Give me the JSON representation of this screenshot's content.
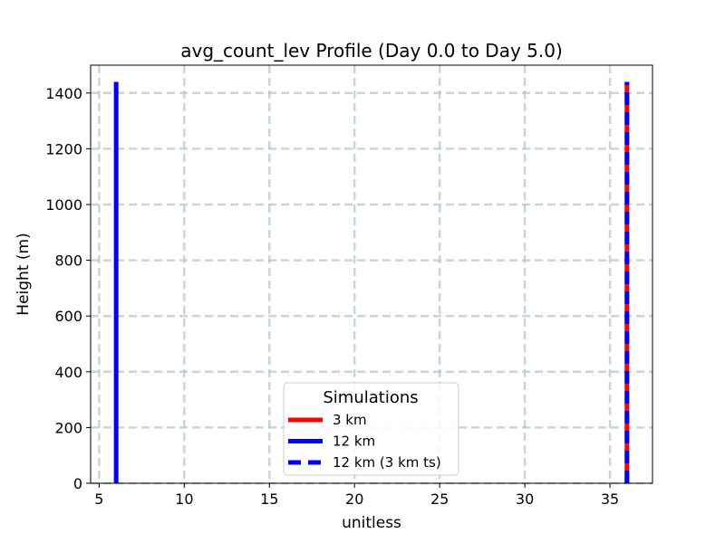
{
  "chart_data": {
    "type": "line",
    "title": "avg_count_lev Profile (Day 0.0 to Day 5.0)",
    "xlabel": "unitless",
    "ylabel": "Height (m)",
    "xlim": [
      4.5,
      37.5
    ],
    "ylim": [
      0,
      1500
    ],
    "xticks": [
      5,
      10,
      15,
      20,
      25,
      30,
      35
    ],
    "yticks": [
      0,
      200,
      400,
      600,
      800,
      1000,
      1200,
      1400
    ],
    "grid": true,
    "legend": {
      "title": "Simulations",
      "placement": "lower-center"
    },
    "series": [
      {
        "name": "3 km",
        "color": "#ff0000",
        "style": "solid",
        "x": [
          36,
          36
        ],
        "y": [
          0,
          1440
        ]
      },
      {
        "name": "12 km",
        "color": "#0000ff",
        "style": "solid",
        "x": [
          6,
          6
        ],
        "y": [
          0,
          1440
        ]
      },
      {
        "name": "12 km (3 km ts)",
        "color": "#0000ff",
        "style": "dashed",
        "x": [
          36,
          36
        ],
        "y": [
          0,
          1440
        ]
      }
    ]
  }
}
